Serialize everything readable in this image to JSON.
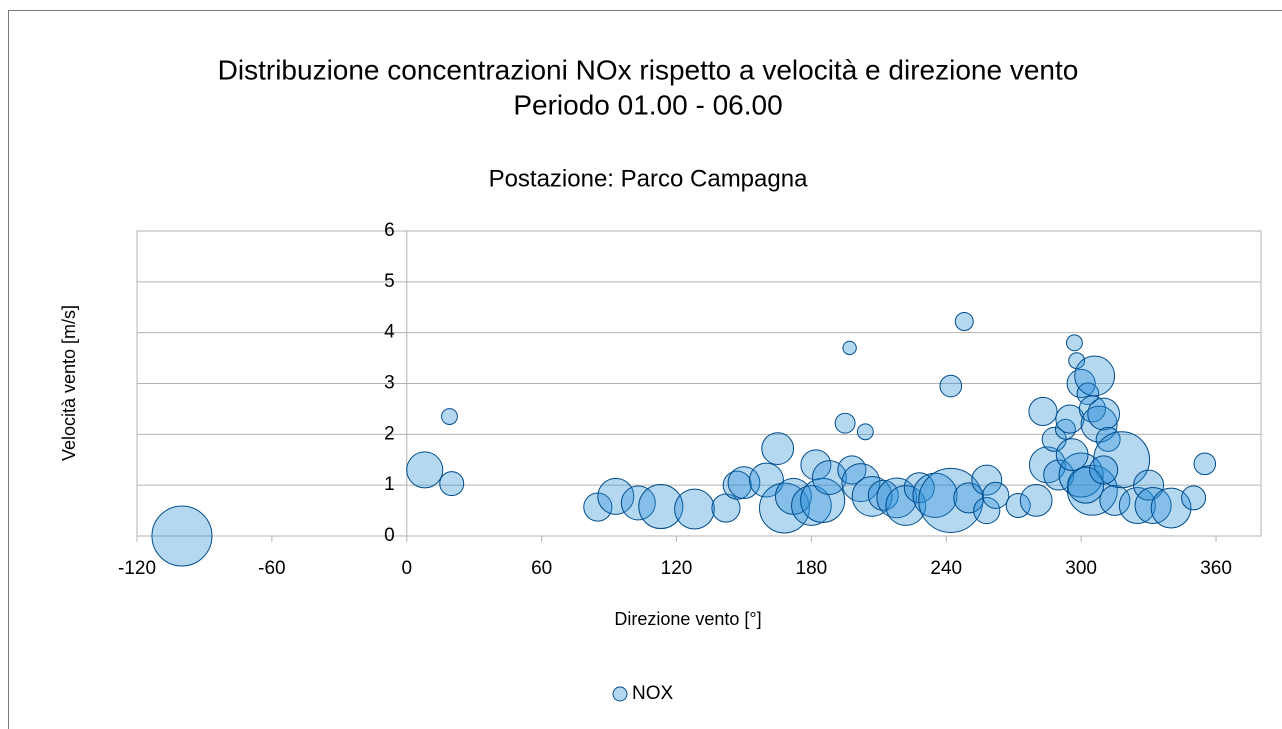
{
  "chart_data": {
    "type": "bubble",
    "title": "Distribuzione concentrazioni NOx rispetto a velocità e direzione vento",
    "subtitle": "Periodo 01.00 - 06.00",
    "annotation": "Postazione: Parco Campagna",
    "x_label": "Direzione vento [°]",
    "y_label": "Velocità vento [m/s]",
    "xlim": [
      -120,
      380
    ],
    "xticks": [
      -120,
      -60,
      0,
      60,
      120,
      180,
      240,
      300,
      360
    ],
    "ylim": [
      0,
      6
    ],
    "yticks": [
      0,
      1,
      2,
      3,
      4,
      5,
      6
    ],
    "grid": true,
    "legend": "bottom",
    "series": [
      {
        "name": "NOX",
        "color": "#2a8fd8",
        "stroke": "#004c8c",
        "x": [
          8,
          19,
          20,
          85,
          93,
          103,
          113,
          128,
          142,
          147,
          150,
          160,
          165,
          168,
          172,
          180,
          182,
          185,
          188,
          195,
          197,
          198,
          202,
          204,
          207,
          212,
          218,
          222,
          228,
          235,
          242,
          242,
          248,
          250,
          258,
          258,
          262,
          272,
          280,
          283,
          285,
          288,
          290,
          293,
          295,
          297,
          298,
          300,
          303,
          305,
          306,
          308,
          310,
          312,
          300,
          305,
          315,
          318,
          325,
          330,
          332,
          340,
          350,
          355,
          296,
          302,
          310,
          -100
        ],
        "values": [
          1.3,
          2.35,
          1.03,
          0.57,
          0.78,
          0.65,
          0.58,
          0.53,
          0.55,
          1.0,
          1.05,
          1.1,
          1.72,
          0.55,
          0.78,
          0.6,
          1.4,
          0.7,
          1.15,
          2.22,
          3.7,
          1.3,
          1.05,
          2.05,
          0.78,
          0.8,
          0.75,
          0.6,
          0.95,
          0.8,
          2.95,
          0.7,
          4.22,
          0.75,
          1.1,
          0.5,
          0.8,
          0.6,
          0.7,
          2.45,
          1.4,
          1.9,
          1.2,
          2.1,
          2.3,
          3.8,
          3.45,
          3.0,
          2.8,
          2.5,
          3.15,
          2.2,
          2.4,
          1.9,
          1.2,
          0.9,
          0.7,
          1.5,
          0.6,
          1.0,
          0.6,
          0.55,
          0.75,
          1.42,
          1.6,
          1.0,
          1.3,
          0
        ],
        "sizes": [
          36,
          7,
          16,
          22,
          36,
          32,
          54,
          44,
          22,
          22,
          28,
          32,
          28,
          69,
          36,
          44,
          25,
          54,
          32,
          11,
          5,
          22,
          40,
          7,
          44,
          25,
          44,
          44,
          25,
          54,
          13,
          114,
          9,
          25,
          25,
          19,
          19,
          16,
          28,
          22,
          36,
          16,
          25,
          11,
          22,
          7,
          7,
          22,
          13,
          19,
          44,
          36,
          28,
          16,
          54,
          69,
          25,
          87,
          36,
          25,
          36,
          44,
          16,
          13,
          28,
          36,
          22,
          100
        ]
      }
    ]
  }
}
